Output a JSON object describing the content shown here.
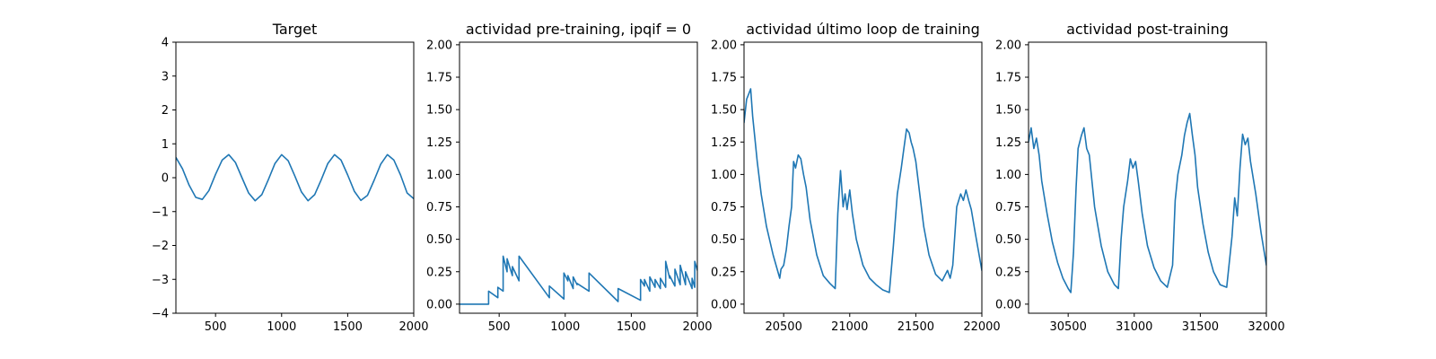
{
  "colors": {
    "series": "#1f77b4",
    "axes": "#000000",
    "background": "#ffffff"
  },
  "chart_data": [
    {
      "type": "line",
      "title": "Target",
      "xlim": [
        200,
        2000
      ],
      "ylim": [
        -4,
        4
      ],
      "xticks": [
        500,
        1000,
        1500,
        2000
      ],
      "yticks": [
        -4,
        -3,
        -2,
        -1,
        0,
        1,
        2,
        3,
        4
      ],
      "x": [
        200,
        250,
        300,
        350,
        400,
        450,
        500,
        550,
        600,
        650,
        700,
        750,
        800,
        850,
        900,
        950,
        1000,
        1050,
        1100,
        1150,
        1200,
        1250,
        1300,
        1350,
        1400,
        1450,
        1500,
        1550,
        1600,
        1650,
        1700,
        1750,
        1800,
        1850,
        1900,
        1950,
        2000
      ],
      "y": [
        0.6,
        0.26,
        -0.22,
        -0.58,
        -0.64,
        -0.38,
        0.1,
        0.52,
        0.68,
        0.45,
        0.0,
        -0.45,
        -0.68,
        -0.5,
        -0.05,
        0.42,
        0.68,
        0.5,
        0.05,
        -0.42,
        -0.68,
        -0.5,
        -0.06,
        0.42,
        0.68,
        0.52,
        0.08,
        -0.4,
        -0.67,
        -0.52,
        -0.08,
        0.4,
        0.68,
        0.52,
        0.08,
        -0.45,
        -0.62
      ]
    },
    {
      "type": "line",
      "title": "actividad pre-training, ipqif = 0",
      "xlim": [
        200,
        2000
      ],
      "ylim": [
        -0.07,
        2.02
      ],
      "xticks": [
        500,
        1000,
        1500,
        2000
      ],
      "yticks": [
        0.0,
        0.25,
        0.5,
        0.75,
        1.0,
        1.25,
        1.5,
        1.75,
        2.0
      ],
      "x": [
        200,
        420,
        420,
        490,
        490,
        530,
        530,
        560,
        560,
        600,
        600,
        650,
        650,
        880,
        880,
        990,
        990,
        1020,
        1020,
        1060,
        1060,
        1090,
        1090,
        1180,
        1180,
        1400,
        1400,
        1570,
        1570,
        1600,
        1600,
        1640,
        1640,
        1680,
        1680,
        1720,
        1720,
        1760,
        1760,
        1790,
        1790,
        1830,
        1830,
        1870,
        1870,
        1910,
        1910,
        1960,
        1960,
        1980,
        1980,
        2000
      ],
      "y": [
        0,
        0,
        0.1,
        0.05,
        0.13,
        0.1,
        0.37,
        0.25,
        0.35,
        0.22,
        0.29,
        0.18,
        0.37,
        0.05,
        0.14,
        0.04,
        0.24,
        0.18,
        0.22,
        0.12,
        0.21,
        0.15,
        0.16,
        0.1,
        0.24,
        0.02,
        0.12,
        0.03,
        0.19,
        0.14,
        0.19,
        0.1,
        0.21,
        0.13,
        0.19,
        0.12,
        0.2,
        0.13,
        0.33,
        0.2,
        0.22,
        0.14,
        0.27,
        0.15,
        0.3,
        0.15,
        0.25,
        0.12,
        0.2,
        0.13,
        0.33,
        0.26
      ]
    },
    {
      "type": "line",
      "title": "actividad último loop de training",
      "xlim": [
        20200,
        22000
      ],
      "ylim": [
        -0.07,
        2.02
      ],
      "xticks": [
        20500,
        21000,
        21500,
        22000
      ],
      "yticks": [
        0.0,
        0.25,
        0.5,
        0.75,
        1.0,
        1.25,
        1.5,
        1.75,
        2.0
      ],
      "x": [
        20200,
        20220,
        20235,
        20250,
        20265,
        20280,
        20300,
        20330,
        20370,
        20420,
        20470,
        20480,
        20500,
        20520,
        20540,
        20560,
        20575,
        20590,
        20610,
        20630,
        20650,
        20670,
        20700,
        20750,
        20800,
        20850,
        20890,
        20910,
        20930,
        20950,
        20965,
        20980,
        21000,
        21020,
        21050,
        21100,
        21150,
        21200,
        21250,
        21300,
        21330,
        21360,
        21390,
        21410,
        21430,
        21450,
        21465,
        21480,
        21500,
        21530,
        21560,
        21600,
        21650,
        21700,
        21740,
        21760,
        21780,
        21810,
        21840,
        21860,
        21880,
        21900,
        21920,
        21950,
        22000
      ],
      "y": [
        1.4,
        1.58,
        1.62,
        1.66,
        1.45,
        1.3,
        1.1,
        0.85,
        0.6,
        0.38,
        0.2,
        0.27,
        0.3,
        0.42,
        0.6,
        0.75,
        1.1,
        1.05,
        1.15,
        1.12,
        1.0,
        0.9,
        0.65,
        0.38,
        0.22,
        0.16,
        0.12,
        0.7,
        1.03,
        0.75,
        0.85,
        0.73,
        0.88,
        0.7,
        0.5,
        0.3,
        0.2,
        0.15,
        0.11,
        0.09,
        0.45,
        0.85,
        1.05,
        1.2,
        1.35,
        1.32,
        1.25,
        1.2,
        1.1,
        0.85,
        0.6,
        0.38,
        0.23,
        0.18,
        0.26,
        0.2,
        0.3,
        0.75,
        0.85,
        0.8,
        0.88,
        0.8,
        0.73,
        0.55,
        0.26
      ]
    },
    {
      "type": "line",
      "title": "actividad post-training",
      "xlim": [
        30200,
        32000
      ],
      "ylim": [
        -0.07,
        2.02
      ],
      "xticks": [
        30500,
        31000,
        31500,
        32000
      ],
      "yticks": [
        0.0,
        0.25,
        0.5,
        0.75,
        1.0,
        1.25,
        1.5,
        1.75,
        2.0
      ],
      "x": [
        30200,
        30220,
        30240,
        30260,
        30280,
        30300,
        30340,
        30380,
        30420,
        30460,
        30500,
        30520,
        30540,
        30560,
        30575,
        30600,
        30620,
        30640,
        30660,
        30700,
        30750,
        30800,
        30850,
        30880,
        30900,
        30920,
        30950,
        30970,
        30990,
        31010,
        31030,
        31060,
        31100,
        31150,
        31200,
        31250,
        31290,
        31310,
        31330,
        31360,
        31380,
        31400,
        31420,
        31440,
        31460,
        31480,
        31520,
        31560,
        31600,
        31650,
        31700,
        31740,
        31760,
        31780,
        31800,
        31820,
        31840,
        31860,
        31880,
        31920,
        31960,
        32000
      ],
      "y": [
        1.25,
        1.36,
        1.2,
        1.28,
        1.15,
        0.95,
        0.7,
        0.48,
        0.32,
        0.2,
        0.12,
        0.09,
        0.4,
        0.9,
        1.2,
        1.3,
        1.36,
        1.2,
        1.15,
        0.75,
        0.45,
        0.25,
        0.15,
        0.12,
        0.5,
        0.75,
        0.95,
        1.12,
        1.05,
        1.1,
        0.95,
        0.7,
        0.45,
        0.28,
        0.18,
        0.13,
        0.3,
        0.8,
        1.0,
        1.15,
        1.3,
        1.4,
        1.47,
        1.3,
        1.15,
        0.9,
        0.62,
        0.4,
        0.25,
        0.15,
        0.13,
        0.52,
        0.82,
        0.68,
        1.05,
        1.31,
        1.23,
        1.28,
        1.1,
        0.85,
        0.55,
        0.3
      ]
    }
  ]
}
